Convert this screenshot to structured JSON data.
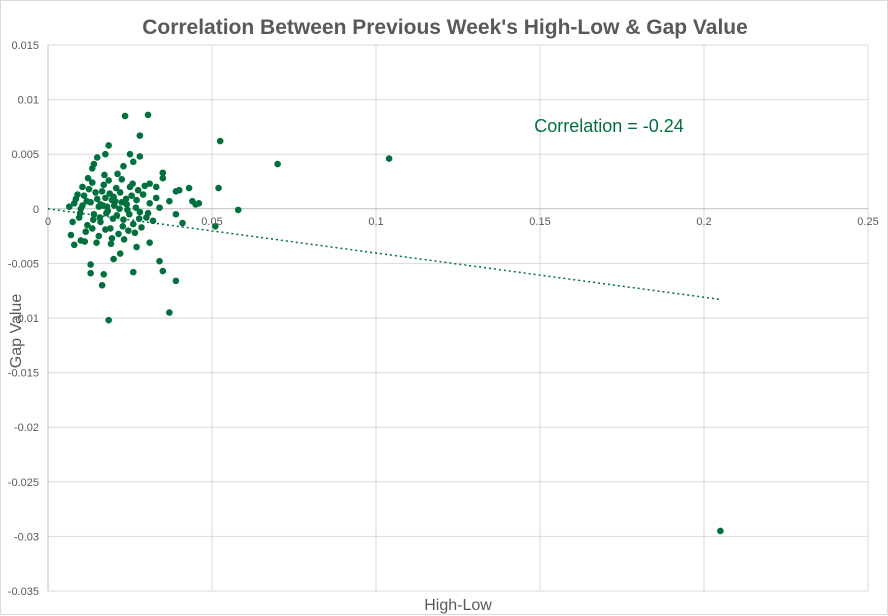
{
  "chart_data": {
    "type": "scatter",
    "title": "Correlation Between Previous Week's High-Low & Gap Value",
    "xlabel": "High-Low",
    "ylabel": "Gap Value",
    "xlim": [
      0,
      0.25
    ],
    "ylim": [
      -0.035,
      0.015
    ],
    "x_ticks": [
      "0",
      "0.05",
      "0.1",
      "0.15",
      "0.2",
      "0.25"
    ],
    "y_ticks": [
      "0.015",
      "0.01",
      "0.005",
      "0",
      "-0.005",
      "-0.01",
      "-0.015",
      "-0.02",
      "-0.025",
      "-0.03",
      "-0.035"
    ],
    "grid": true,
    "point_color": "#00703c",
    "annotation": "Correlation = -0.24",
    "trendline": {
      "style": "dotted",
      "x": [
        0,
        0.205
      ],
      "y": [
        0.0,
        -0.0083
      ]
    },
    "series": [
      {
        "points": [
          [
            0.0235,
            0.0085
          ],
          [
            0.0305,
            0.0086
          ],
          [
            0.028,
            0.0067
          ],
          [
            0.0525,
            0.0062
          ],
          [
            0.07,
            0.0041
          ],
          [
            0.104,
            0.0046
          ],
          [
            0.0185,
            0.0058
          ],
          [
            0.015,
            0.0047
          ],
          [
            0.0175,
            0.005
          ],
          [
            0.014,
            0.0041
          ],
          [
            0.0135,
            0.0037
          ],
          [
            0.025,
            0.005
          ],
          [
            0.028,
            0.0048
          ],
          [
            0.026,
            0.0043
          ],
          [
            0.023,
            0.0039
          ],
          [
            0.035,
            0.0033
          ],
          [
            0.031,
            0.0023
          ],
          [
            0.033,
            0.002
          ],
          [
            0.04,
            0.0017
          ],
          [
            0.039,
            0.0016
          ],
          [
            0.043,
            0.0019
          ],
          [
            0.052,
            0.0019
          ],
          [
            0.044,
            0.0007
          ],
          [
            0.046,
            0.0005
          ],
          [
            0.045,
            0.0004
          ],
          [
            0.035,
            0.0028
          ],
          [
            0.058,
            -0.0001
          ],
          [
            0.051,
            -0.0016
          ],
          [
            0.041,
            -0.0013
          ],
          [
            0.039,
            -0.0005
          ],
          [
            0.037,
            0.0007
          ],
          [
            0.013,
            -0.0051
          ],
          [
            0.013,
            -0.0059
          ],
          [
            0.017,
            -0.006
          ],
          [
            0.0165,
            -0.007
          ],
          [
            0.0185,
            -0.0102
          ],
          [
            0.034,
            -0.0048
          ],
          [
            0.035,
            -0.0057
          ],
          [
            0.026,
            -0.0058
          ],
          [
            0.039,
            -0.0066
          ],
          [
            0.037,
            -0.0095
          ],
          [
            0.02,
            -0.0046
          ],
          [
            0.022,
            -0.0041
          ],
          [
            0.027,
            -0.0035
          ],
          [
            0.031,
            -0.0031
          ],
          [
            0.008,
            -0.0033
          ],
          [
            0.007,
            -0.0024
          ],
          [
            0.01,
            -0.0029
          ],
          [
            0.205,
            -0.0295
          ],
          [
            0.008,
            0.0005
          ],
          [
            0.0095,
            -0.0008
          ],
          [
            0.011,
            0.0012
          ],
          [
            0.012,
            -0.0015
          ],
          [
            0.0105,
            0.0003
          ],
          [
            0.0125,
            0.0018
          ],
          [
            0.014,
            -0.0005
          ],
          [
            0.015,
            0.0009
          ],
          [
            0.016,
            -0.0012
          ],
          [
            0.017,
            0.0022
          ],
          [
            0.018,
            0.0002
          ],
          [
            0.019,
            -0.0018
          ],
          [
            0.02,
            0.0011
          ],
          [
            0.021,
            -0.0006
          ],
          [
            0.022,
            0.0015
          ],
          [
            0.023,
            -0.001
          ],
          [
            0.024,
            0.0004
          ],
          [
            0.025,
            0.002
          ],
          [
            0.026,
            -0.0014
          ],
          [
            0.027,
            0.0008
          ],
          [
            0.028,
            -0.0003
          ],
          [
            0.029,
            0.0013
          ],
          [
            0.03,
            -0.0008
          ],
          [
            0.031,
            0.0005
          ],
          [
            0.032,
            -0.0011
          ],
          [
            0.033,
            0.001
          ],
          [
            0.034,
            0.0001
          ],
          [
            0.009,
            0.0013
          ],
          [
            0.0115,
            -0.0021
          ],
          [
            0.0135,
            0.0024
          ],
          [
            0.0155,
            -0.0025
          ],
          [
            0.0165,
            0.0016
          ],
          [
            0.0175,
            -0.0019
          ],
          [
            0.0185,
            0.0026
          ],
          [
            0.0195,
            -0.0027
          ],
          [
            0.0205,
            0.0007
          ],
          [
            0.0215,
            -0.0023
          ],
          [
            0.0225,
            0.0027
          ],
          [
            0.0245,
            -0.002
          ],
          [
            0.0255,
            0.0012
          ],
          [
            0.0265,
            -0.0022
          ],
          [
            0.0275,
            0.0017
          ],
          [
            0.0285,
            -0.0017
          ],
          [
            0.0295,
            0.0021
          ],
          [
            0.0305,
            -0.0004
          ],
          [
            0.0065,
            0.0002
          ],
          [
            0.0075,
            -0.0012
          ],
          [
            0.0085,
            0.0009
          ],
          [
            0.01,
            0.0
          ],
          [
            0.013,
            0.0006
          ],
          [
            0.0145,
            0.0015
          ],
          [
            0.0158,
            -0.0008
          ],
          [
            0.0168,
            0.0003
          ],
          [
            0.0178,
            -0.0004
          ],
          [
            0.0188,
            0.0014
          ],
          [
            0.0198,
            -0.0009
          ],
          [
            0.0208,
            0.0019
          ],
          [
            0.0218,
            0.0
          ],
          [
            0.0228,
            -0.0016
          ],
          [
            0.0238,
            0.0009
          ],
          [
            0.0248,
            -0.0005
          ],
          [
            0.0258,
            0.0023
          ],
          [
            0.0268,
            0.0001
          ],
          [
            0.0278,
            -0.0009
          ],
          [
            0.0112,
            -0.003
          ],
          [
            0.0122,
            0.0028
          ],
          [
            0.0148,
            -0.0031
          ],
          [
            0.0172,
            0.0031
          ],
          [
            0.0192,
            -0.0032
          ],
          [
            0.0212,
            0.0032
          ],
          [
            0.0232,
            -0.0028
          ],
          [
            0.0105,
            0.002
          ],
          [
            0.0135,
            -0.0018
          ],
          [
            0.016,
            0.0004
          ],
          [
            0.0182,
            -0.0002
          ],
          [
            0.0202,
            0.0003
          ],
          [
            0.0225,
            0.0006
          ],
          [
            0.0242,
            -0.0001
          ],
          [
            0.0195,
            0.0008
          ],
          [
            0.0175,
            0.001
          ],
          [
            0.0155,
            0.0002
          ],
          [
            0.0138,
            -0.001
          ],
          [
            0.0118,
            0.0007
          ],
          [
            0.0098,
            -0.0004
          ]
        ]
      }
    ]
  }
}
